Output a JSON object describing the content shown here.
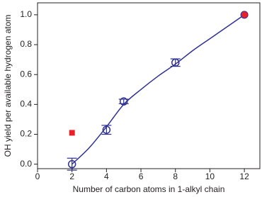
{
  "chart_data": {
    "type": "scatter",
    "xlabel": "Number of carbon atoms in 1-alkyl chain",
    "ylabel": "OH yield per available hydrogen atom",
    "xlim": [
      0,
      12.9
    ],
    "ylim": [
      -0.03,
      1.08
    ],
    "xticks": [
      0,
      2,
      4,
      6,
      8,
      10,
      12
    ],
    "yticks": [
      {
        "value": 0,
        "label": "0.0"
      },
      {
        "value": 0.2,
        "label": "0.2"
      },
      {
        "value": 0.4,
        "label": "0.4"
      },
      {
        "value": 0.6,
        "label": "0.6"
      },
      {
        "value": 0.8,
        "label": "0.8"
      },
      {
        "value": 1.0,
        "label": "1.0"
      }
    ],
    "series": [
      {
        "type": "line",
        "color": "#2e3192",
        "x": [
          2,
          3,
          4,
          5,
          6,
          7,
          8,
          9,
          10,
          11,
          12
        ],
        "values": [
          0,
          0.11,
          0.25,
          0.4,
          0.5,
          0.59,
          0.67,
          0.76,
          0.84,
          0.92,
          1.0
        ]
      },
      {
        "type": "scatter",
        "marker": "open-circle",
        "color": "#2e3192",
        "x": [
          2,
          4,
          5,
          8
        ],
        "values": [
          0,
          0.23,
          0.42,
          0.68
        ],
        "errors": [
          0.04,
          0.03,
          0.015,
          0.025
        ]
      },
      {
        "type": "scatter",
        "marker": "filled-circle",
        "color": "#e8202a",
        "x": [
          12
        ],
        "values": [
          1.0
        ]
      },
      {
        "type": "scatter",
        "marker": "square",
        "color": "#e8202a",
        "x": [
          2
        ],
        "values": [
          0.21
        ]
      }
    ]
  }
}
